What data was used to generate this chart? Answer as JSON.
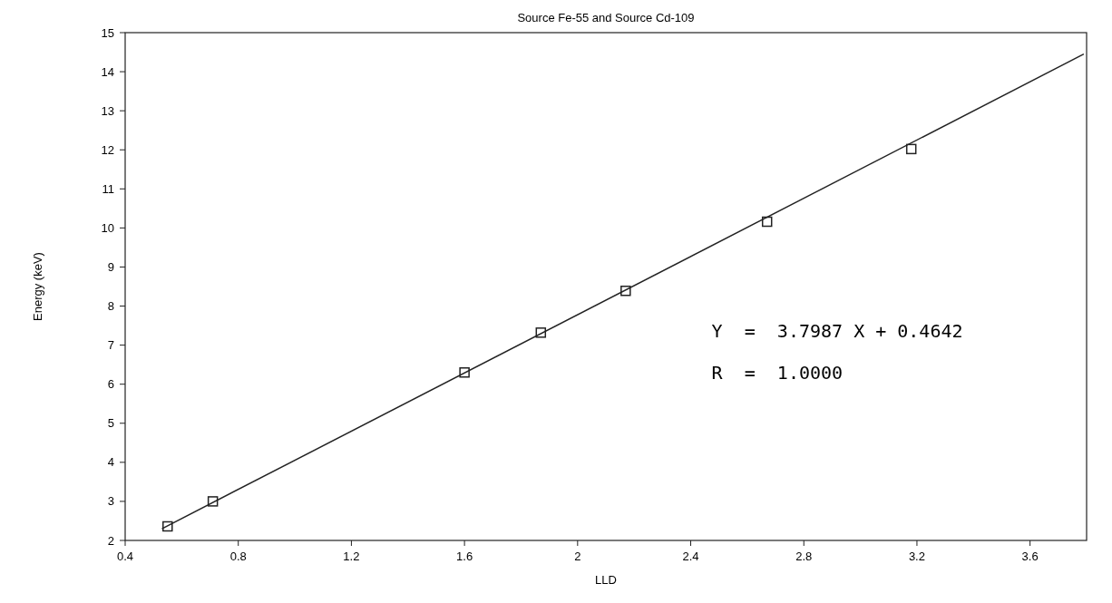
{
  "chart_data": {
    "type": "scatter",
    "title": "Source Fe-55 and Source Cd-109",
    "xlabel": "LLD",
    "ylabel": "Energy (keV)",
    "x": [
      0.55,
      0.71,
      1.6,
      1.87,
      2.17,
      2.67,
      3.18
    ],
    "series": [
      {
        "color": "#222222",
        "values": [
          2.36,
          3.0,
          6.3,
          7.32,
          8.39,
          10.16,
          12.02
        ],
        "marker": "square"
      },
      {
        "type": "line",
        "color": "#222222",
        "x": [
          0.53,
          3.79
        ],
        "values": [
          2.3,
          14.45
        ],
        "marker": "none",
        "line_style": "solid"
      }
    ],
    "xlim": [
      0.4,
      3.8
    ],
    "ylim": [
      2,
      15
    ],
    "xticks": [
      0.4,
      0.8,
      1.2,
      1.6,
      2,
      2.4,
      2.8,
      3.2,
      3.6
    ],
    "yticks": [
      2,
      3,
      4,
      5,
      6,
      7,
      8,
      9,
      10,
      11,
      12,
      13,
      14,
      15
    ],
    "grid": false,
    "annotations": [
      "Y  =  3.7987 X + 0.4642",
      "R  =  1.0000"
    ]
  }
}
